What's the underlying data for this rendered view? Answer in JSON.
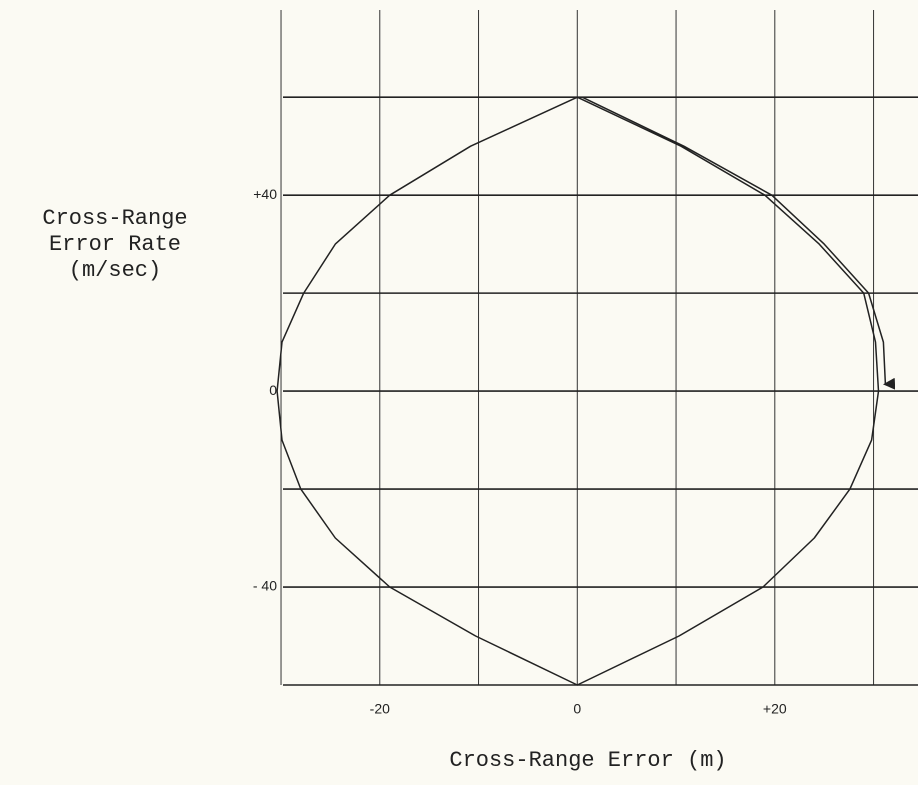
{
  "chart_data": {
    "type": "line",
    "ylabel": [
      "Cross-Range",
      "Error Rate",
      "(m/sec)"
    ],
    "xlabel": "Cross-Range Error (m)",
    "xlim": [
      -29.8,
      34.5
    ],
    "ylim": [
      -60,
      77.8
    ],
    "xticks": [
      {
        "value": -30,
        "label": null
      },
      -20,
      {
        "value": -10,
        "label": null
      },
      0,
      {
        "value": 10,
        "label": null
      },
      {
        "value": 20,
        "label": "+20"
      },
      {
        "value": 30,
        "label": null
      }
    ],
    "yticks": [
      {
        "value": -60,
        "label": null
      },
      {
        "value": -40,
        "label": "- 40"
      },
      {
        "value": -20,
        "label": null
      },
      0,
      {
        "value": 20,
        "label": null
      },
      {
        "value": 40,
        "label": "+40"
      },
      {
        "value": 60,
        "label": null
      }
    ],
    "grid": true,
    "series": [
      {
        "color": "#222222",
        "x": [
          0,
          -10.8,
          -19,
          -24.5,
          -27.7,
          -29.9,
          -30.4,
          -29.9,
          -28,
          -24.5,
          -19,
          -10.3,
          0,
          10.3,
          18.8,
          24,
          27.6,
          29.8,
          30.5,
          30.2,
          29,
          24.5,
          19,
          10.5,
          0,
          0.5,
          10.8,
          19.7,
          25,
          29.5,
          31,
          31.2
        ],
        "values": [
          60,
          50,
          40,
          30,
          20,
          10,
          0,
          -10,
          -20,
          -30,
          -40,
          -50,
          -60,
          -50,
          -40,
          -30,
          -20,
          -10,
          0,
          10,
          20,
          30,
          40,
          50,
          60,
          60,
          50,
          40,
          30,
          20,
          10,
          1.4
        ]
      }
    ]
  }
}
